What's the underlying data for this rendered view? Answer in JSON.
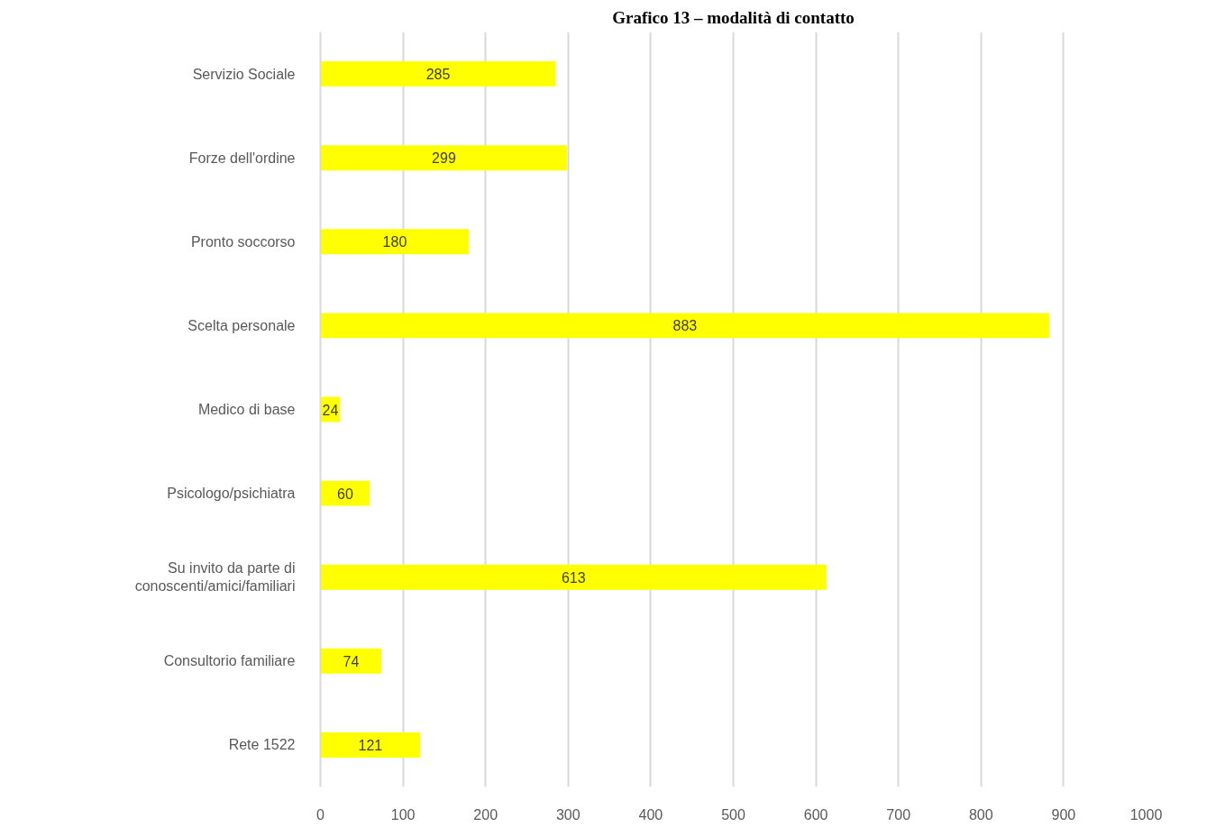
{
  "chart_data": {
    "type": "bar",
    "orientation": "horizontal",
    "title": "Grafico 13 – modalità di contatto",
    "categories": [
      "Servizio Sociale",
      "Forze dell'ordine",
      "Pronto soccorso",
      "Scelta personale",
      "Medico di base",
      "Psicologo/psichiatra",
      "Su invito da parte di conoscenti/amici/familiari",
      "Consultorio familiare",
      "Rete 1522"
    ],
    "values": [
      285,
      299,
      180,
      883,
      24,
      60,
      613,
      74,
      121
    ],
    "color": "#ffff00",
    "xlim": [
      0,
      1000
    ],
    "xticks": [
      0,
      100,
      200,
      300,
      400,
      500,
      600,
      700,
      800,
      900,
      1000
    ],
    "grid": "x",
    "data_labels": true
  }
}
